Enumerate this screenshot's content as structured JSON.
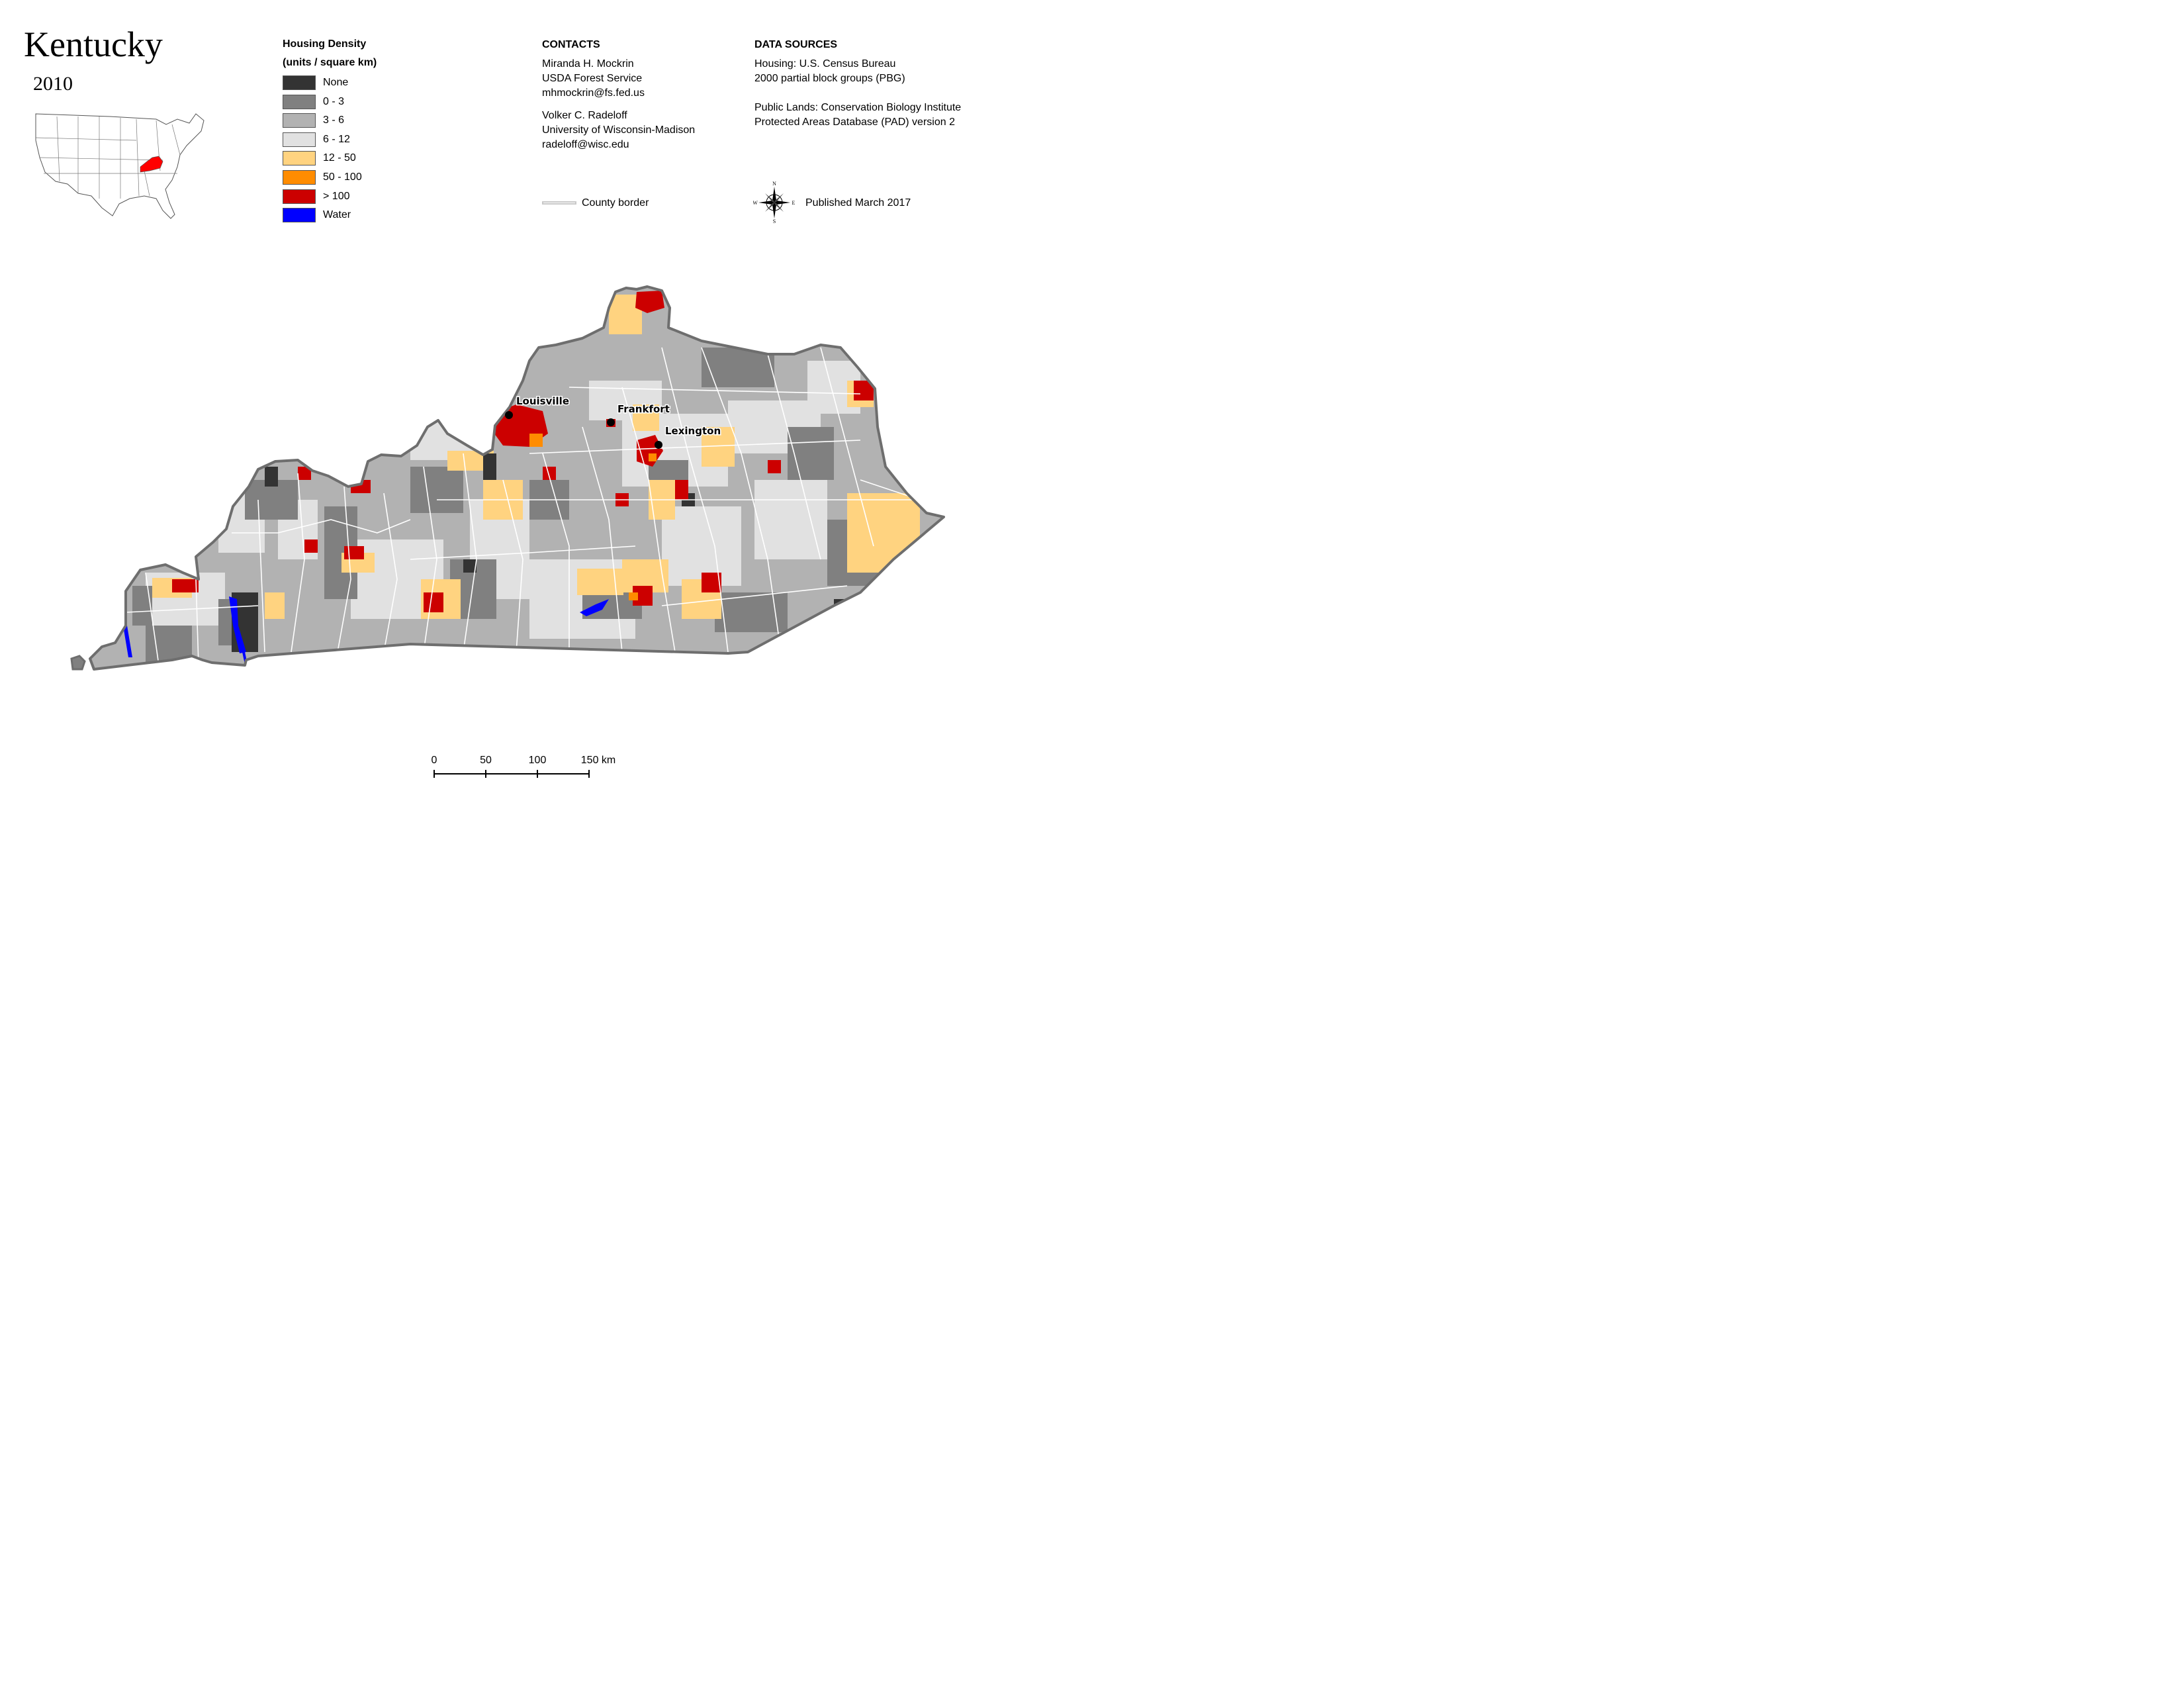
{
  "title": "Kentucky",
  "year": "2010",
  "legend": {
    "title_line1": "Housing Density",
    "title_line2": "(units / square km)",
    "items": [
      {
        "label": "None",
        "color": "#333333"
      },
      {
        "label": "0 - 3",
        "color": "#808080"
      },
      {
        "label": "3 - 6",
        "color": "#b2b2b2"
      },
      {
        "label": "6 - 12",
        "color": "#e1e1e1"
      },
      {
        "label": "12 - 50",
        "color": "#ffd380"
      },
      {
        "label": "50 - 100",
        "color": "#ff8c00"
      },
      {
        "label": "> 100",
        "color": "#cc0000"
      },
      {
        "label": "Water",
        "color": "#0000ff"
      }
    ]
  },
  "contacts": {
    "heading": "CONTACTS",
    "person1": {
      "name": "Miranda H. Mockrin",
      "org": "USDA Forest Service",
      "email": "mhmockrin@fs.fed.us"
    },
    "person2": {
      "name": "Volker C. Radeloff",
      "org": "University of Wisconsin-Madison",
      "email": "radeloff@wisc.edu"
    }
  },
  "sources": {
    "heading": "DATA SOURCES",
    "housing_line1": "Housing: U.S. Census Bureau",
    "housing_line2": "2000 partial block groups (PBG)",
    "lands_line1": "Public Lands: Conservation Biology Institute",
    "lands_line2": "Protected Areas Database (PAD) version 2"
  },
  "county_border_label": "County border",
  "compass": {
    "n": "N",
    "s": "S",
    "e": "E",
    "w": "W"
  },
  "published": "Published March 2017",
  "cities": [
    {
      "name": "Louisville"
    },
    {
      "name": "Frankfort"
    },
    {
      "name": "Lexington"
    }
  ],
  "scale_bar": {
    "ticks": [
      "0",
      "50",
      "100",
      "150 km"
    ]
  },
  "colors": {
    "state_outline": "#6e6e6e",
    "county_border": "#ffffff",
    "highlight_state": "#ff0000"
  }
}
